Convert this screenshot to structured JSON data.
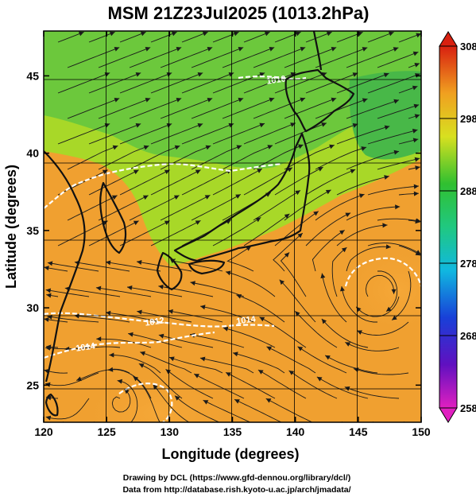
{
  "title": "MSM 21Z23Jul2025 (1013.2hPa)",
  "xaxis": {
    "label": "Longitude (degrees)",
    "min": 120,
    "max": 150,
    "ticks": [
      "120",
      "125",
      "130",
      "135",
      "140",
      "145",
      "150"
    ]
  },
  "yaxis": {
    "label": "Latitude  (degrees)",
    "min": 22.6,
    "max": 47.9,
    "ticks": [
      "25",
      "30",
      "35",
      "40",
      "45"
    ]
  },
  "colorbar": {
    "min": 258,
    "max": 308,
    "ticks": [
      "308",
      "298",
      "288",
      "278",
      "268",
      "258"
    ]
  },
  "contours": [
    "1010",
    "1012",
    "1014",
    "1014"
  ],
  "credits": {
    "line1": "Drawing by DCL (https://www.gfd-dennou.org/library/dcl/)",
    "line2": "Data from http://database.rish.kyoto-u.ac.jp/arch/jmadata/"
  },
  "colors": {
    "warm": "#f0a030",
    "mid": "#a8d828",
    "cool": "#5cc83a",
    "coast": "#111111"
  }
}
